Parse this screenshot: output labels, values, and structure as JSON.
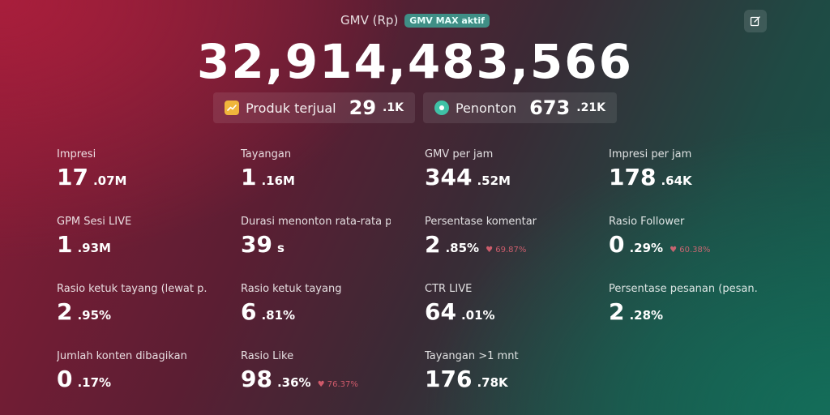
{
  "header": {
    "title": "GMV (Rp)",
    "badge": "GMV MAX aktif",
    "edit_icon": "edit-icon"
  },
  "gmv_total": "32,914,483,566",
  "pills": [
    {
      "icon": "chart-up-icon",
      "label": "Produk terjual",
      "main": "29",
      "suffix": ".1K",
      "color": "#f0b63c"
    },
    {
      "icon": "eye-icon",
      "label": "Penonton",
      "main": "673",
      "suffix": ".21K",
      "color": "#3fc1a6"
    }
  ],
  "metrics": [
    {
      "label": "Impresi",
      "main": "17",
      "suffix": ".07M",
      "delta": ""
    },
    {
      "label": "Tayangan",
      "main": "1",
      "suffix": ".16M",
      "delta": ""
    },
    {
      "label": "GMV per jam",
      "main": "344",
      "suffix": ".52M",
      "delta": ""
    },
    {
      "label": "Impresi per jam",
      "main": "178",
      "suffix": ".64K",
      "delta": ""
    },
    {
      "label": "GPM Sesi LIVE",
      "main": "1",
      "suffix": ".93M",
      "delta": ""
    },
    {
      "label": "Durasi menonton rata-rata p...",
      "main": "39",
      "suffix": "s",
      "delta": ""
    },
    {
      "label": "Persentase komentar",
      "main": "2",
      "suffix": ".85%",
      "delta": "♥ 69.87%"
    },
    {
      "label": "Rasio Follower",
      "main": "0",
      "suffix": ".29%",
      "delta": "♥ 60.38%"
    },
    {
      "label": "Rasio ketuk tayang (lewat p...",
      "main": "2",
      "suffix": ".95%",
      "delta": ""
    },
    {
      "label": "Rasio ketuk tayang",
      "main": "6",
      "suffix": ".81%",
      "delta": ""
    },
    {
      "label": "CTR LIVE",
      "main": "64",
      "suffix": ".01%",
      "delta": ""
    },
    {
      "label": "Persentase pesanan (pesan...",
      "main": "2",
      "suffix": ".28%",
      "delta": ""
    },
    {
      "label": "Jumlah konten dibagikan",
      "main": "0",
      "suffix": ".17%",
      "delta": ""
    },
    {
      "label": "Rasio Like",
      "main": "98",
      "suffix": ".36%",
      "delta": "♥ 76.37%"
    },
    {
      "label": "Tayangan >1 mnt",
      "main": "176",
      "suffix": ".78K",
      "delta": ""
    }
  ],
  "colors": {
    "badge_bg": "#3f8f86",
    "delta_down": "#ff6b7d"
  }
}
